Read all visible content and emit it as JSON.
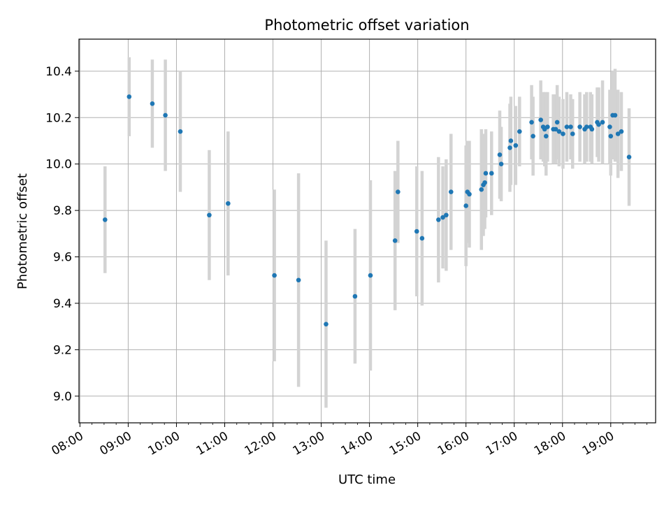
{
  "chart_data": {
    "type": "scatter",
    "title": "Photometric offset variation",
    "xlabel": "UTC time",
    "ylabel": "Photometric offset",
    "x_unit": "hours (UTC)",
    "xlim": [
      7.98,
      19.93
    ],
    "ylim": [
      8.885,
      10.538
    ],
    "x_ticks": [
      {
        "value": 8,
        "label": "08:00"
      },
      {
        "value": 9,
        "label": "09:00"
      },
      {
        "value": 10,
        "label": "10:00"
      },
      {
        "value": 11,
        "label": "11:00"
      },
      {
        "value": 12,
        "label": "12:00"
      },
      {
        "value": 13,
        "label": "13:00"
      },
      {
        "value": 14,
        "label": "14:00"
      },
      {
        "value": 15,
        "label": "15:00"
      },
      {
        "value": 16,
        "label": "16:00"
      },
      {
        "value": 17,
        "label": "17:00"
      },
      {
        "value": 18,
        "label": "18:00"
      },
      {
        "value": 19,
        "label": "19:00"
      }
    ],
    "y_ticks": [
      {
        "value": 9.0,
        "label": "9.0"
      },
      {
        "value": 9.2,
        "label": "9.2"
      },
      {
        "value": 9.4,
        "label": "9.4"
      },
      {
        "value": 9.6,
        "label": "9.6"
      },
      {
        "value": 9.8,
        "label": "9.8"
      },
      {
        "value": 10.0,
        "label": "10.0"
      },
      {
        "value": 10.2,
        "label": "10.2"
      },
      {
        "value": 10.4,
        "label": "10.4"
      }
    ],
    "grid": true,
    "legend": "none",
    "colors": {
      "point": "#1f77b4",
      "errorbar": "#d3d3d3",
      "grid": "#b0b0b0",
      "axes": "#000000"
    },
    "series": [
      {
        "points": [
          {
            "x": 8.52,
            "y": 9.76,
            "err": 0.23
          },
          {
            "x": 9.02,
            "y": 10.29,
            "err": 0.17
          },
          {
            "x": 9.5,
            "y": 10.26,
            "err": 0.19
          },
          {
            "x": 9.77,
            "y": 10.21,
            "err": 0.24
          },
          {
            "x": 10.08,
            "y": 10.14,
            "err": 0.26
          },
          {
            "x": 10.68,
            "y": 9.78,
            "err": 0.28
          },
          {
            "x": 11.07,
            "y": 9.83,
            "err": 0.31
          },
          {
            "x": 12.03,
            "y": 9.52,
            "err": 0.37
          },
          {
            "x": 12.53,
            "y": 9.5,
            "err": 0.46
          },
          {
            "x": 13.1,
            "y": 9.31,
            "err": 0.36
          },
          {
            "x": 13.7,
            "y": 9.43,
            "err": 0.29
          },
          {
            "x": 14.02,
            "y": 9.52,
            "err": 0.41
          },
          {
            "x": 14.53,
            "y": 9.67,
            "err": 0.3
          },
          {
            "x": 14.59,
            "y": 9.88,
            "err": 0.22
          },
          {
            "x": 14.98,
            "y": 9.71,
            "err": 0.28
          },
          {
            "x": 15.09,
            "y": 9.68,
            "err": 0.29
          },
          {
            "x": 15.43,
            "y": 9.76,
            "err": 0.27
          },
          {
            "x": 15.52,
            "y": 9.77,
            "err": 0.22
          },
          {
            "x": 15.59,
            "y": 9.78,
            "err": 0.24
          },
          {
            "x": 15.69,
            "y": 9.88,
            "err": 0.25
          },
          {
            "x": 16.0,
            "y": 9.82,
            "err": 0.26
          },
          {
            "x": 16.03,
            "y": 9.88,
            "err": 0.22
          },
          {
            "x": 16.07,
            "y": 9.87,
            "err": 0.23
          },
          {
            "x": 16.32,
            "y": 9.89,
            "err": 0.26
          },
          {
            "x": 16.36,
            "y": 9.91,
            "err": 0.22
          },
          {
            "x": 16.39,
            "y": 9.92,
            "err": 0.2
          },
          {
            "x": 16.41,
            "y": 9.96,
            "err": 0.19
          },
          {
            "x": 16.53,
            "y": 9.96,
            "err": 0.18
          },
          {
            "x": 16.7,
            "y": 10.04,
            "err": 0.19
          },
          {
            "x": 16.73,
            "y": 10.0,
            "err": 0.16
          },
          {
            "x": 16.91,
            "y": 10.07,
            "err": 0.19
          },
          {
            "x": 16.93,
            "y": 10.1,
            "err": 0.19
          },
          {
            "x": 17.03,
            "y": 10.08,
            "err": 0.17
          },
          {
            "x": 17.11,
            "y": 10.14,
            "err": 0.15
          },
          {
            "x": 17.36,
            "y": 10.18,
            "err": 0.16
          },
          {
            "x": 17.39,
            "y": 10.12,
            "err": 0.17
          },
          {
            "x": 17.55,
            "y": 10.19,
            "err": 0.17
          },
          {
            "x": 17.6,
            "y": 10.16,
            "err": 0.15
          },
          {
            "x": 17.63,
            "y": 10.15,
            "err": 0.16
          },
          {
            "x": 17.66,
            "y": 10.12,
            "err": 0.17
          },
          {
            "x": 17.69,
            "y": 10.16,
            "err": 0.15
          },
          {
            "x": 17.81,
            "y": 10.15,
            "err": 0.15
          },
          {
            "x": 17.86,
            "y": 10.15,
            "err": 0.15
          },
          {
            "x": 17.89,
            "y": 10.18,
            "err": 0.16
          },
          {
            "x": 17.93,
            "y": 10.14,
            "err": 0.15
          },
          {
            "x": 18.01,
            "y": 10.13,
            "err": 0.15
          },
          {
            "x": 18.09,
            "y": 10.16,
            "err": 0.15
          },
          {
            "x": 18.17,
            "y": 10.16,
            "err": 0.14
          },
          {
            "x": 18.21,
            "y": 10.13,
            "err": 0.15
          },
          {
            "x": 18.36,
            "y": 10.16,
            "err": 0.15
          },
          {
            "x": 18.46,
            "y": 10.15,
            "err": 0.15
          },
          {
            "x": 18.5,
            "y": 10.16,
            "err": 0.15
          },
          {
            "x": 18.58,
            "y": 10.16,
            "err": 0.15
          },
          {
            "x": 18.61,
            "y": 10.15,
            "err": 0.15
          },
          {
            "x": 18.72,
            "y": 10.18,
            "err": 0.15
          },
          {
            "x": 18.75,
            "y": 10.17,
            "err": 0.16
          },
          {
            "x": 18.83,
            "y": 10.18,
            "err": 0.18
          },
          {
            "x": 18.98,
            "y": 10.16,
            "err": 0.16
          },
          {
            "x": 19.0,
            "y": 10.12,
            "err": 0.17
          },
          {
            "x": 19.04,
            "y": 10.21,
            "err": 0.19
          },
          {
            "x": 19.09,
            "y": 10.21,
            "err": 0.2
          },
          {
            "x": 19.15,
            "y": 10.13,
            "err": 0.19
          },
          {
            "x": 19.22,
            "y": 10.14,
            "err": 0.17
          },
          {
            "x": 19.38,
            "y": 10.03,
            "err": 0.21
          }
        ]
      }
    ]
  }
}
